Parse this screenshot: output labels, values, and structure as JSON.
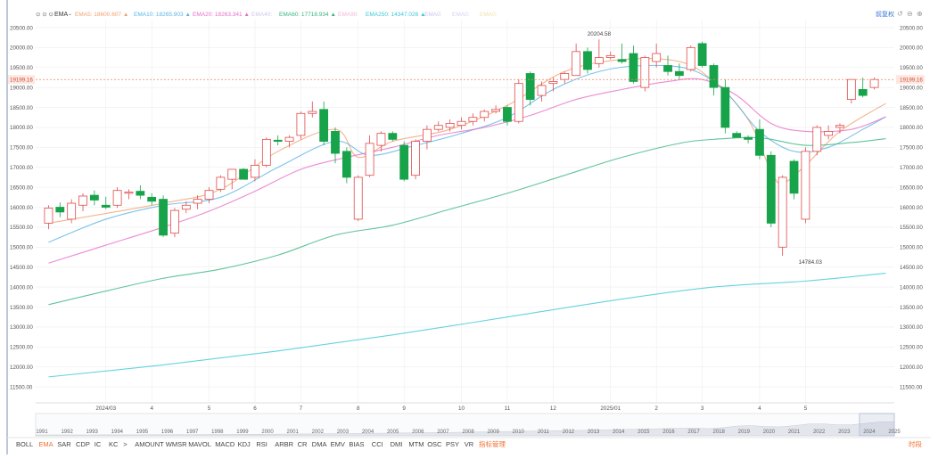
{
  "legend": {
    "indicator": "EMA",
    "items": [
      {
        "label": "EMA5:",
        "value": "18600.607",
        "color": "#f0a070",
        "arrow": "▲"
      },
      {
        "label": "EMA10:",
        "value": "18265.903",
        "color": "#5bb4e6",
        "arrow": "▲"
      },
      {
        "label": "EMA20:",
        "value": "18263.341",
        "color": "#e66ec8",
        "arrow": "▲"
      },
      {
        "label": "EMA40:",
        "value": "",
        "color": "#c9c9ec",
        "arrow": ""
      },
      {
        "label": "EMA60:",
        "value": "17718.934",
        "color": "#38b580",
        "arrow": "▲"
      },
      {
        "label": "EMA90:",
        "value": "",
        "color": "#f0b8d8",
        "arrow": ""
      },
      {
        "label": "EMA250:",
        "value": "14347.026",
        "color": "#3ec8d8",
        "arrow": "▲"
      },
      {
        "label": "EMA0:",
        "value": "",
        "color": "#c8c8e8",
        "arrow": ""
      },
      {
        "label": "EMA0:",
        "value": "",
        "color": "#d8d0f0",
        "arrow": ""
      },
      {
        "label": "EMA0:",
        "value": "",
        "color": "#f0e0b0",
        "arrow": ""
      }
    ],
    "right_label": "前复权",
    "right_label_color": "#3a78d6"
  },
  "chart_data": {
    "type": "candlestick",
    "ylim": [
      11100,
      20700
    ],
    "y_ticks": [
      11500,
      12000,
      12500,
      13000,
      13500,
      14000,
      14500,
      15000,
      15500,
      16000,
      16500,
      17000,
      17500,
      18000,
      18500,
      19000,
      19500,
      20000,
      20500
    ],
    "y_tick_labels": [
      "11500.00",
      "12000.00",
      "12500.00",
      "13000.00",
      "13500.00",
      "14000.00",
      "14500.00",
      "15000.00",
      "15500.00",
      "16000.00",
      "16500.00",
      "17000.00",
      "17500.00",
      "18000.00",
      "18500.00",
      "19000.00",
      "19500.00",
      "20000.00",
      "20500.00"
    ],
    "x_labels": [
      {
        "index": 5,
        "label": "2024/03"
      },
      {
        "index": 9,
        "label": "4"
      },
      {
        "index": 14,
        "label": "5"
      },
      {
        "index": 18,
        "label": "6"
      },
      {
        "index": 22,
        "label": "7"
      },
      {
        "index": 27,
        "label": "8"
      },
      {
        "index": 31,
        "label": "9"
      },
      {
        "index": 36,
        "label": "10"
      },
      {
        "index": 40,
        "label": "11"
      },
      {
        "index": 44,
        "label": "12"
      },
      {
        "index": 49,
        "label": "2025/01"
      },
      {
        "index": 53,
        "label": "2"
      },
      {
        "index": 57,
        "label": "3"
      },
      {
        "index": 62,
        "label": "4"
      },
      {
        "index": 66,
        "label": "5"
      }
    ],
    "candles": [
      {
        "o": 15600,
        "h": 16050,
        "l": 15450,
        "c": 15980
      },
      {
        "o": 16000,
        "h": 16120,
        "l": 15750,
        "c": 15880
      },
      {
        "o": 15700,
        "h": 16200,
        "l": 15600,
        "c": 16100
      },
      {
        "o": 16050,
        "h": 16350,
        "l": 15900,
        "c": 16280
      },
      {
        "o": 16300,
        "h": 16420,
        "l": 16050,
        "c": 16180
      },
      {
        "o": 16050,
        "h": 16260,
        "l": 15950,
        "c": 16000
      },
      {
        "o": 16050,
        "h": 16500,
        "l": 15980,
        "c": 16420
      },
      {
        "o": 16350,
        "h": 16450,
        "l": 16200,
        "c": 16380
      },
      {
        "o": 16400,
        "h": 16550,
        "l": 16200,
        "c": 16300
      },
      {
        "o": 16250,
        "h": 16350,
        "l": 16050,
        "c": 16150
      },
      {
        "o": 16200,
        "h": 16300,
        "l": 15250,
        "c": 15300
      },
      {
        "o": 15350,
        "h": 15980,
        "l": 15250,
        "c": 15920
      },
      {
        "o": 15950,
        "h": 16150,
        "l": 15850,
        "c": 16050
      },
      {
        "o": 16100,
        "h": 16300,
        "l": 15950,
        "c": 16200
      },
      {
        "o": 16200,
        "h": 16500,
        "l": 16100,
        "c": 16420
      },
      {
        "o": 16450,
        "h": 16800,
        "l": 16380,
        "c": 16750
      },
      {
        "o": 16700,
        "h": 16900,
        "l": 16450,
        "c": 16950
      },
      {
        "o": 16950,
        "h": 16980,
        "l": 16750,
        "c": 16700
      },
      {
        "o": 16750,
        "h": 17200,
        "l": 16650,
        "c": 17050
      },
      {
        "o": 17050,
        "h": 17750,
        "l": 17000,
        "c": 17700
      },
      {
        "o": 17680,
        "h": 17800,
        "l": 17550,
        "c": 17650
      },
      {
        "o": 17650,
        "h": 17800,
        "l": 17500,
        "c": 17750
      },
      {
        "o": 17800,
        "h": 18400,
        "l": 17700,
        "c": 18350
      },
      {
        "o": 18350,
        "h": 18650,
        "l": 18250,
        "c": 18400
      },
      {
        "o": 18450,
        "h": 18650,
        "l": 17550,
        "c": 17650
      },
      {
        "o": 17900,
        "h": 18000,
        "l": 17100,
        "c": 17350
      },
      {
        "o": 17400,
        "h": 17500,
        "l": 16600,
        "c": 16750
      },
      {
        "o": 15700,
        "h": 16800,
        "l": 15650,
        "c": 16750
      },
      {
        "o": 16800,
        "h": 17800,
        "l": 16750,
        "c": 17600
      },
      {
        "o": 17550,
        "h": 17900,
        "l": 17400,
        "c": 17850
      },
      {
        "o": 17850,
        "h": 17900,
        "l": 17650,
        "c": 17700
      },
      {
        "o": 17550,
        "h": 17650,
        "l": 16650,
        "c": 16700
      },
      {
        "o": 16800,
        "h": 17700,
        "l": 16700,
        "c": 17650
      },
      {
        "o": 17650,
        "h": 18050,
        "l": 17450,
        "c": 17950
      },
      {
        "o": 17950,
        "h": 18150,
        "l": 17900,
        "c": 18050
      },
      {
        "o": 18000,
        "h": 18200,
        "l": 17900,
        "c": 18100
      },
      {
        "o": 18050,
        "h": 18250,
        "l": 17950,
        "c": 18150
      },
      {
        "o": 18150,
        "h": 18350,
        "l": 18050,
        "c": 18250
      },
      {
        "o": 18250,
        "h": 18450,
        "l": 18150,
        "c": 18400
      },
      {
        "o": 18400,
        "h": 18550,
        "l": 18350,
        "c": 18450
      },
      {
        "o": 18500,
        "h": 18550,
        "l": 18050,
        "c": 18150
      },
      {
        "o": 18150,
        "h": 19200,
        "l": 18100,
        "c": 19100
      },
      {
        "o": 19350,
        "h": 19400,
        "l": 18550,
        "c": 18700
      },
      {
        "o": 18800,
        "h": 19150,
        "l": 18650,
        "c": 19050
      },
      {
        "o": 19100,
        "h": 19250,
        "l": 18900,
        "c": 19150
      },
      {
        "o": 19200,
        "h": 19400,
        "l": 19100,
        "c": 19350
      },
      {
        "o": 19300,
        "h": 20100,
        "l": 19300,
        "c": 19900
      },
      {
        "o": 19900,
        "h": 20000,
        "l": 19350,
        "c": 19450
      },
      {
        "o": 19600,
        "h": 20204.58,
        "l": 19500,
        "c": 19750
      },
      {
        "o": 19750,
        "h": 19900,
        "l": 19700,
        "c": 19800
      },
      {
        "o": 19700,
        "h": 20100,
        "l": 19600,
        "c": 19650
      },
      {
        "o": 19850,
        "h": 20050,
        "l": 19100,
        "c": 19150
      },
      {
        "o": 19000,
        "h": 19800,
        "l": 18900,
        "c": 19750
      },
      {
        "o": 19650,
        "h": 20100,
        "l": 19500,
        "c": 19850
      },
      {
        "o": 19550,
        "h": 19800,
        "l": 19300,
        "c": 19400
      },
      {
        "o": 19400,
        "h": 19600,
        "l": 19200,
        "c": 19300
      },
      {
        "o": 19450,
        "h": 20050,
        "l": 19400,
        "c": 20000
      },
      {
        "o": 20100,
        "h": 20150,
        "l": 19500,
        "c": 19550
      },
      {
        "o": 19550,
        "h": 19600,
        "l": 18800,
        "c": 19000
      },
      {
        "o": 19000,
        "h": 19200,
        "l": 17850,
        "c": 18000
      },
      {
        "o": 17850,
        "h": 17900,
        "l": 17750,
        "c": 17750
      },
      {
        "o": 17750,
        "h": 17800,
        "l": 17600,
        "c": 17700
      },
      {
        "o": 17950,
        "h": 18200,
        "l": 17200,
        "c": 17300
      },
      {
        "o": 17300,
        "h": 17400,
        "l": 15500,
        "c": 15600
      },
      {
        "o": 15000,
        "h": 16800,
        "l": 14784.03,
        "c": 16750
      },
      {
        "o": 17150,
        "h": 17200,
        "l": 16200,
        "c": 16350
      },
      {
        "o": 15700,
        "h": 17500,
        "l": 15600,
        "c": 17400
      },
      {
        "o": 17400,
        "h": 18050,
        "l": 17300,
        "c": 18000
      },
      {
        "o": 17800,
        "h": 18050,
        "l": 17700,
        "c": 17900
      },
      {
        "o": 18000,
        "h": 18100,
        "l": 17850,
        "c": 18050
      },
      {
        "o": 18700,
        "h": 19200,
        "l": 18600,
        "c": 19200
      },
      {
        "o": 18950,
        "h": 19250,
        "l": 18750,
        "c": 18800
      },
      {
        "o": 19000,
        "h": 19250,
        "l": 18950,
        "c": 19199.16
      }
    ],
    "ema_series": [
      {
        "name": "EMA5",
        "color": "#f0a070",
        "points": [
          [
            0,
            15600
          ],
          [
            10,
            16100
          ],
          [
            15,
            16450
          ],
          [
            20,
            17400
          ],
          [
            25,
            17950
          ],
          [
            27,
            17250
          ],
          [
            30,
            17650
          ],
          [
            35,
            17950
          ],
          [
            40,
            18550
          ],
          [
            45,
            19400
          ],
          [
            50,
            19700
          ],
          [
            55,
            19650
          ],
          [
            58,
            19150
          ],
          [
            61,
            18200
          ],
          [
            63,
            16900
          ],
          [
            64,
            16600
          ],
          [
            66,
            17050
          ],
          [
            69,
            17900
          ],
          [
            73,
            18600
          ]
        ]
      },
      {
        "name": "EMA10",
        "color": "#5bb4e6",
        "points": [
          [
            0,
            15120
          ],
          [
            5,
            15700
          ],
          [
            10,
            16050
          ],
          [
            15,
            16250
          ],
          [
            20,
            17000
          ],
          [
            25,
            17650
          ],
          [
            28,
            17300
          ],
          [
            32,
            17550
          ],
          [
            36,
            17850
          ],
          [
            40,
            18250
          ],
          [
            44,
            18950
          ],
          [
            48,
            19400
          ],
          [
            52,
            19550
          ],
          [
            56,
            19450
          ],
          [
            59,
            18900
          ],
          [
            62,
            17900
          ],
          [
            65,
            17400
          ],
          [
            68,
            17500
          ],
          [
            71,
            17950
          ],
          [
            73,
            18265.903
          ]
        ]
      },
      {
        "name": "EMA20",
        "color": "#e66ec8",
        "points": [
          [
            0,
            14600
          ],
          [
            5,
            15050
          ],
          [
            10,
            15500
          ],
          [
            14,
            15900
          ],
          [
            18,
            16400
          ],
          [
            22,
            16950
          ],
          [
            26,
            17250
          ],
          [
            30,
            17500
          ],
          [
            34,
            17800
          ],
          [
            38,
            18000
          ],
          [
            42,
            18300
          ],
          [
            46,
            18700
          ],
          [
            50,
            18950
          ],
          [
            54,
            19150
          ],
          [
            57,
            19200
          ],
          [
            60,
            18800
          ],
          [
            63,
            18100
          ],
          [
            66,
            17900
          ],
          [
            70,
            17950
          ],
          [
            73,
            18263.341
          ]
        ]
      },
      {
        "name": "EMA60",
        "color": "#38b580",
        "points": [
          [
            0,
            13560
          ],
          [
            5,
            13900
          ],
          [
            10,
            14220
          ],
          [
            15,
            14450
          ],
          [
            20,
            14800
          ],
          [
            25,
            15300
          ],
          [
            30,
            15550
          ],
          [
            35,
            15950
          ],
          [
            40,
            16350
          ],
          [
            45,
            16800
          ],
          [
            50,
            17250
          ],
          [
            55,
            17600
          ],
          [
            58,
            17700
          ],
          [
            62,
            17740
          ],
          [
            66,
            17550
          ],
          [
            70,
            17620
          ],
          [
            73,
            17718.934
          ]
        ]
      },
      {
        "name": "EMA250",
        "color": "#3ec8d8",
        "points": [
          [
            0,
            11750
          ],
          [
            10,
            12050
          ],
          [
            20,
            12400
          ],
          [
            30,
            12800
          ],
          [
            40,
            13250
          ],
          [
            50,
            13700
          ],
          [
            58,
            14000
          ],
          [
            66,
            14150
          ],
          [
            73,
            14347.026
          ]
        ]
      }
    ],
    "annotations": {
      "high_label": "20204.58",
      "high_index": 48,
      "low_label": "14784.03",
      "low_index": 64,
      "last_price_label": "19199.16",
      "last_price": 19199.16
    }
  },
  "navigator": {
    "years": [
      "1991",
      "1992",
      "1993",
      "1994",
      "1995",
      "1996",
      "1997",
      "1998",
      "1999",
      "2000",
      "2001",
      "2002",
      "2003",
      "2004",
      "2005",
      "2006",
      "2007",
      "2008",
      "2009",
      "2010",
      "2011",
      "2012",
      "2013",
      "2014",
      "2015",
      "2016",
      "2017",
      "2018",
      "2019",
      "2020",
      "2021",
      "2022",
      "2023",
      "2024",
      "2025"
    ]
  },
  "indicators": {
    "tabs": [
      "BOLL",
      "EMA",
      "SAR",
      "CDP",
      "IC",
      "KC",
      ">",
      "AMOUNT",
      "WMSR",
      "MAVOL",
      "MACD",
      "KDJ",
      "RSI",
      "ARBR",
      "CR",
      "DMA",
      "EMV",
      "BIAS",
      "CCI",
      "DMI",
      "MTM",
      "OSC",
      "PSY",
      "VR",
      "指标管理"
    ],
    "active": "EMA",
    "right_label": "时段",
    "accent": "#f07030"
  },
  "colors": {
    "up": "#e14b4b",
    "down": "#16a34a",
    "grid": "#eeeeee",
    "text": "#555555",
    "last_price": "#f08060"
  }
}
